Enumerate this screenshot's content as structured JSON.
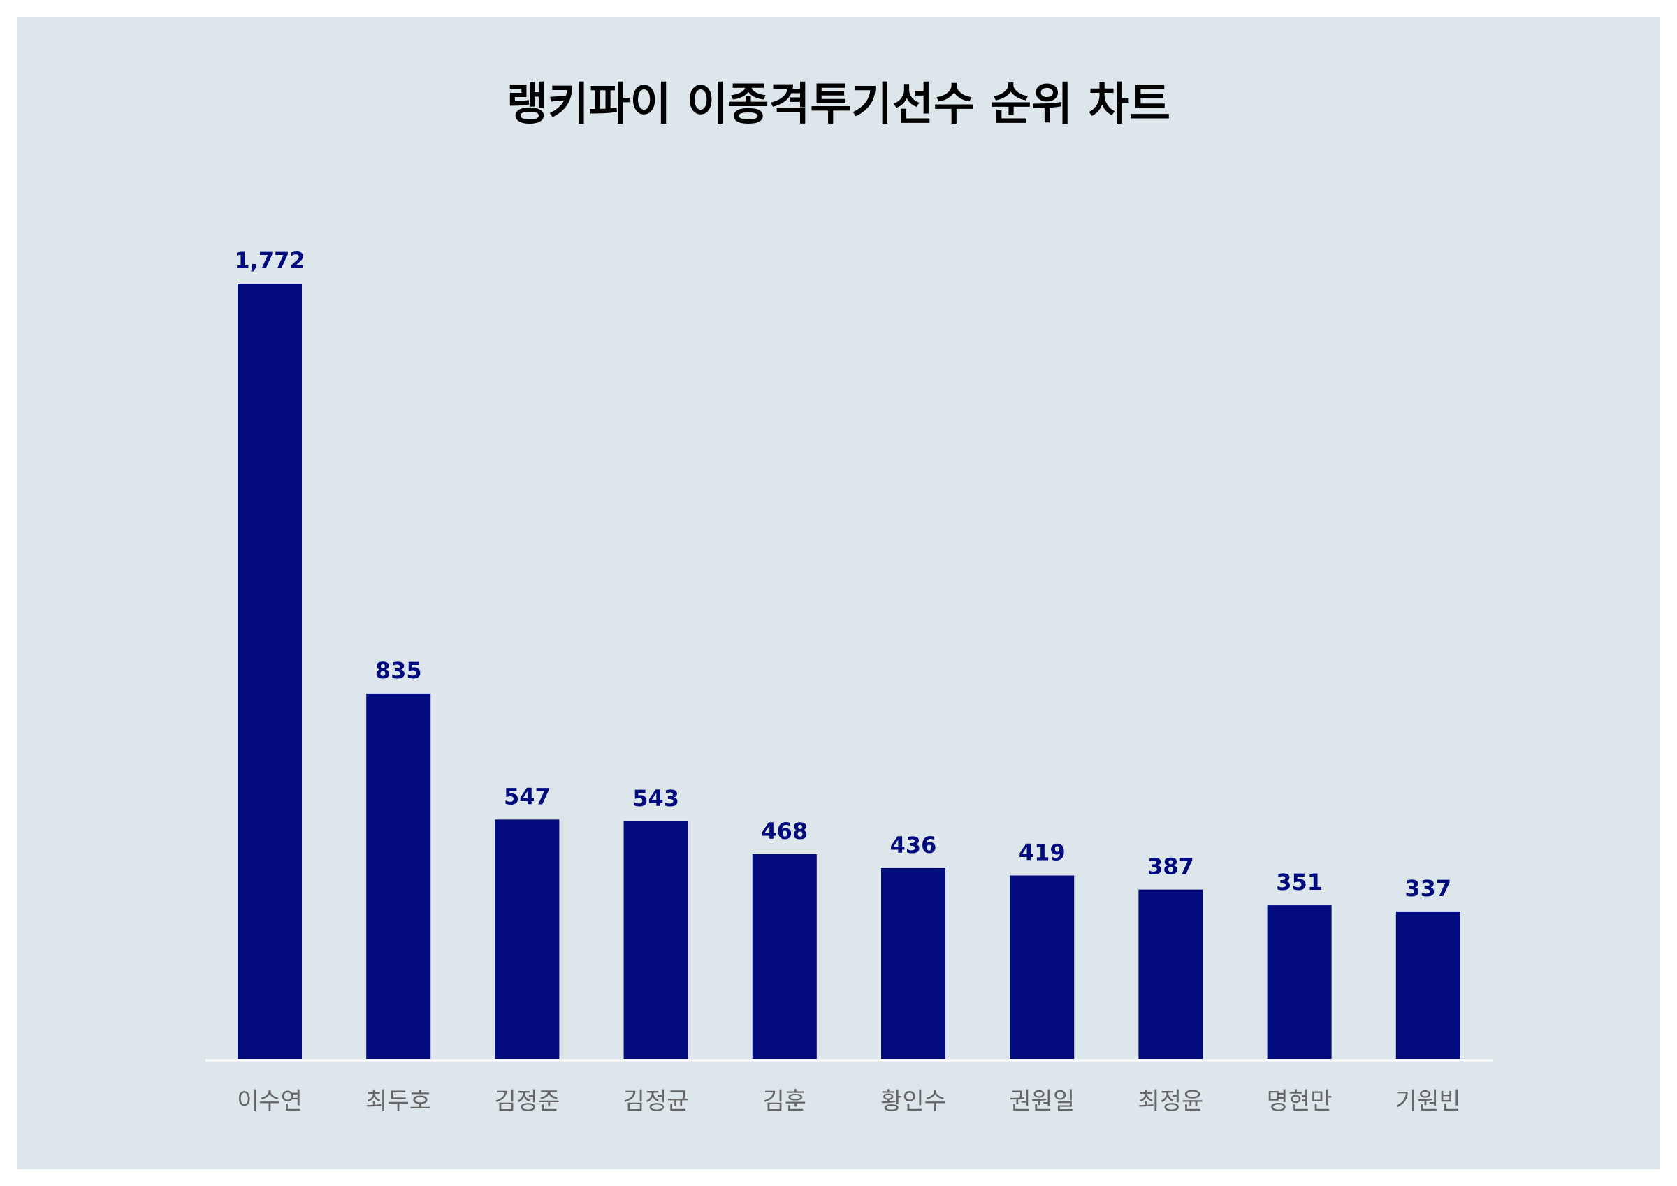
{
  "chart_data": {
    "type": "bar",
    "title": "랭키파이 이종격투기선수 순위 차트",
    "categories": [
      "이수연",
      "최두호",
      "김정준",
      "김정균",
      "김훈",
      "황인수",
      "권원일",
      "최정윤",
      "명현만",
      "기원빈"
    ],
    "values": [
      1772,
      835,
      547,
      543,
      468,
      436,
      419,
      387,
      351,
      337
    ],
    "value_labels": [
      "1,772",
      "835",
      "547",
      "543",
      "468",
      "436",
      "419",
      "387",
      "351",
      "337"
    ],
    "xlabel": "",
    "ylabel": "",
    "ylim": [
      0,
      1772
    ],
    "grid": false,
    "legend": "none",
    "colors": {
      "background": "#dce6eb",
      "bar": "#020b7e",
      "value_label": "#020b7e",
      "category_label": "#666666",
      "baseline": "#ffffff"
    }
  }
}
